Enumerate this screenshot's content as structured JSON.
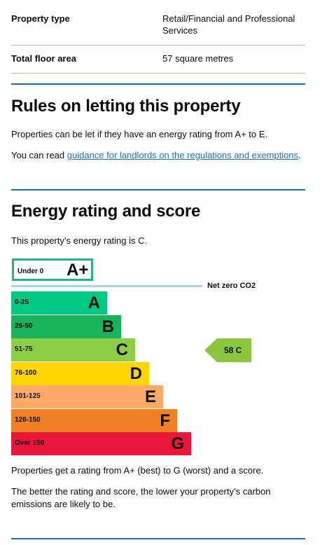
{
  "summary": {
    "rows": [
      {
        "key": "Property type",
        "value": "Retail/Financial and Professional Services"
      },
      {
        "key": "Total floor area",
        "value": "57 square metres"
      }
    ]
  },
  "letting": {
    "heading": "Rules on letting this property",
    "p1": "Properties can be let if they have an energy rating from A+ to E.",
    "p2_prefix": "You can read ",
    "p2_link": "guidance for landlords on the regulations and exemptions",
    "p2_suffix": "."
  },
  "energy": {
    "heading": "Energy rating and score",
    "intro": "This property’s energy rating is C.",
    "footer1": "Properties get a rating from A+ (best) to G (worst) and a score.",
    "footer2": "The better the rating and score, the lower your property’s carbon emissions are likely to be."
  },
  "chart_data": {
    "type": "bar",
    "title": "",
    "aplus": {
      "range": "Under 0",
      "letter": "A+",
      "color": "#24b47f"
    },
    "netzero_label": "Net zero CO2",
    "categories": [
      "A",
      "B",
      "C",
      "D",
      "E",
      "F",
      "G"
    ],
    "ranges": [
      "0-25",
      "26-50",
      "51-75",
      "76-100",
      "101-125",
      "126-150",
      "Over 150"
    ],
    "colors": [
      "#00c781",
      "#19b459",
      "#8dce46",
      "#ffd500",
      "#fcaa65",
      "#ef8023",
      "#e9153b"
    ],
    "current": {
      "score": 58,
      "rating": "C",
      "label": "58 C",
      "color": "#8cc63f"
    }
  }
}
